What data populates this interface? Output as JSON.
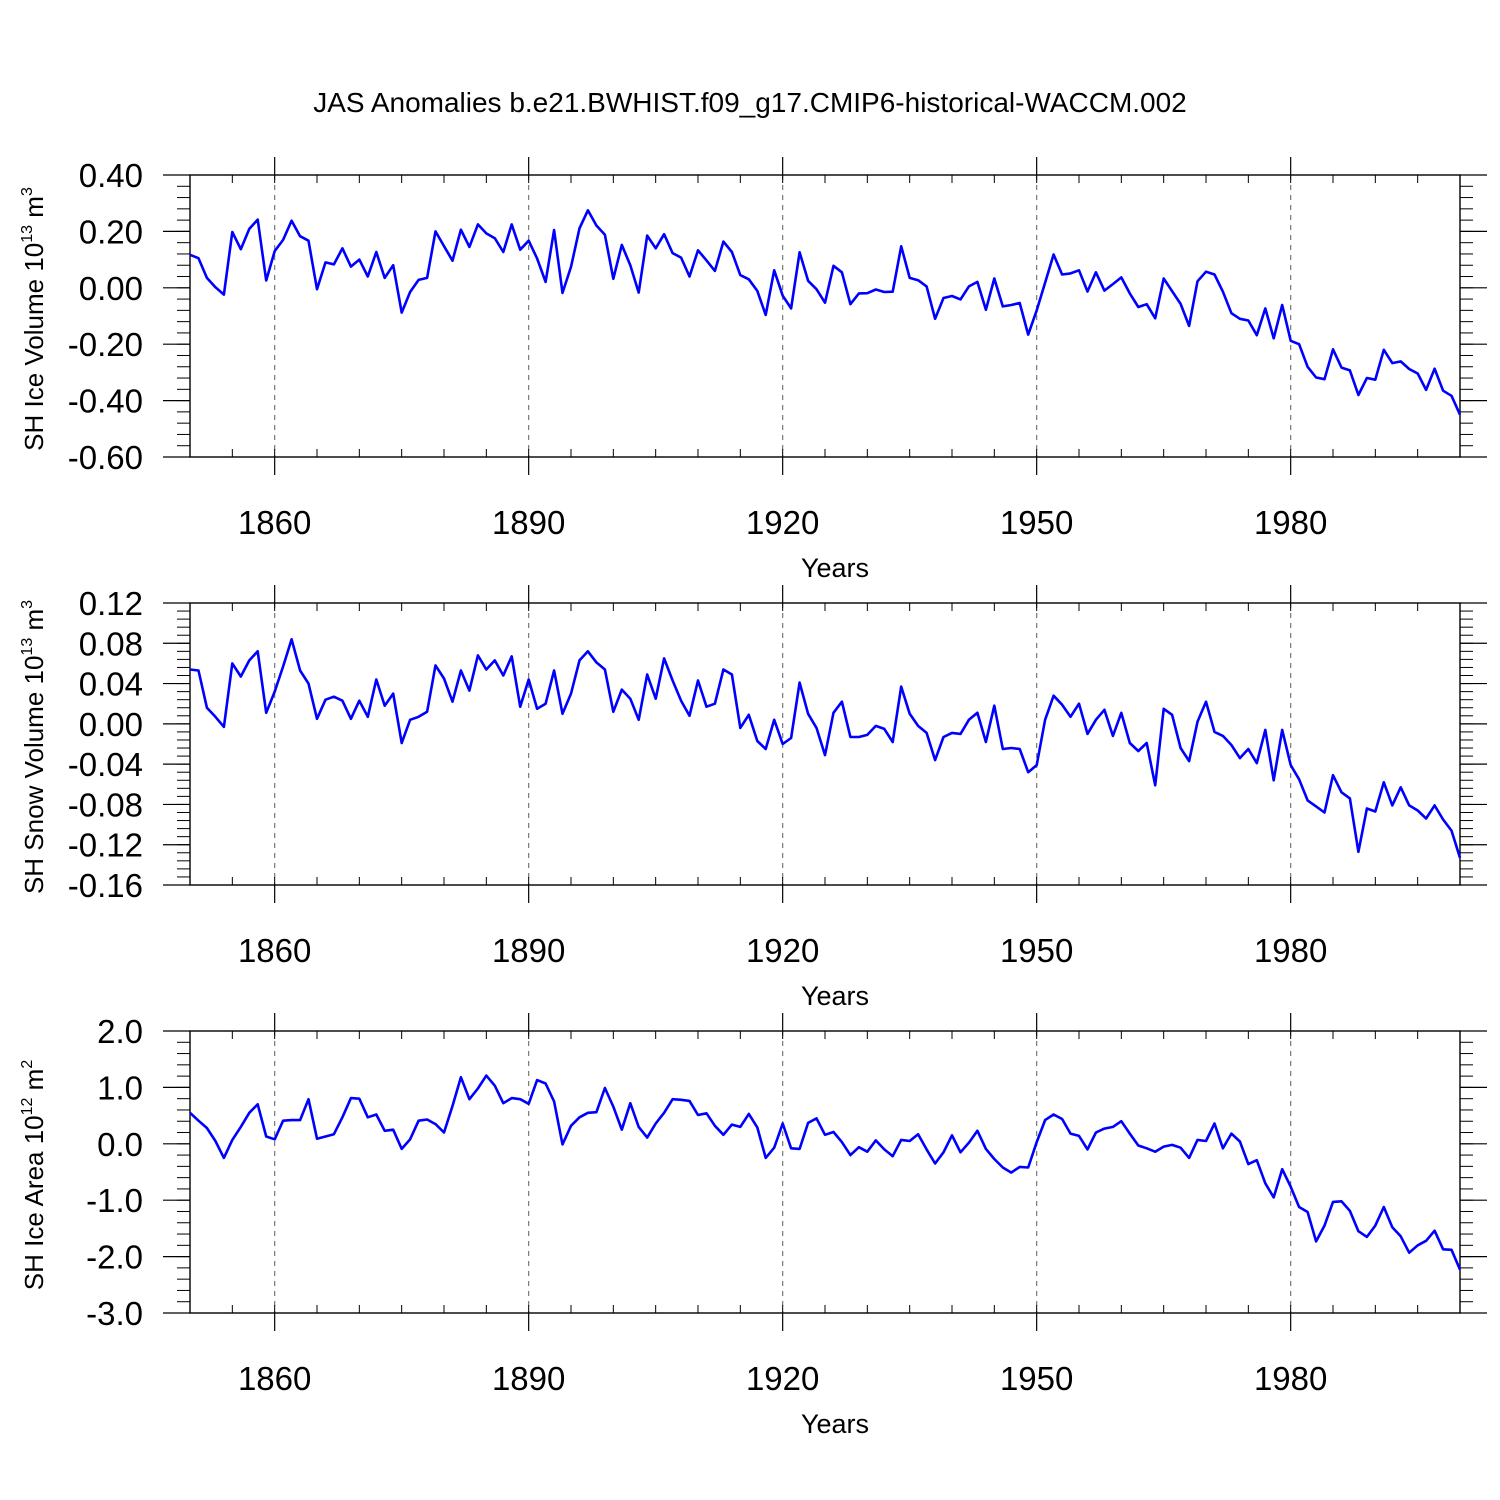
{
  "title": "JAS Anomalies b.e21.BWHIST.f09_g17.CMIP6-historical-WACCM.002",
  "chart_data": [
    {
      "type": "line",
      "ylabel_prefix": "SH Ice Volume 10",
      "ylabel_exp": "13",
      "ylabel_unit": " m",
      "ylabel_unit_exp": "3",
      "xlabel": "Years",
      "xlim": [
        1850,
        2000
      ],
      "ylim": [
        -0.6,
        0.4
      ],
      "yticks": [
        "0.40",
        "0.20",
        "0.00",
        "-0.20",
        "-0.40",
        "-0.60"
      ],
      "ytick_values": [
        0.4,
        0.2,
        0.0,
        -0.2,
        -0.4,
        -0.6
      ],
      "y_minor_step": 0.04,
      "xticks": [
        "1860",
        "1890",
        "1920",
        "1950",
        "1980"
      ],
      "xtick_values": [
        1860,
        1890,
        1920,
        1950,
        1980
      ],
      "x_minor_step": 5,
      "grid": "dashed vertical at major x ticks",
      "line_color": "#0000ff",
      "x_start": 1850,
      "values": [
        0.117,
        0.105,
        0.035,
        0.002,
        -0.024,
        0.198,
        0.137,
        0.209,
        0.242,
        0.026,
        0.13,
        0.17,
        0.238,
        0.183,
        0.167,
        -0.005,
        0.09,
        0.083,
        0.14,
        0.075,
        0.1,
        0.04,
        0.127,
        0.035,
        0.08,
        -0.088,
        -0.015,
        0.028,
        0.035,
        0.2,
        0.148,
        0.096,
        0.206,
        0.145,
        0.225,
        0.193,
        0.176,
        0.127,
        0.225,
        0.135,
        0.167,
        0.104,
        0.021,
        0.205,
        -0.018,
        0.074,
        0.211,
        0.275,
        0.221,
        0.188,
        0.032,
        0.152,
        0.08,
        -0.017,
        0.185,
        0.14,
        0.19,
        0.123,
        0.107,
        0.04,
        0.133,
        0.097,
        0.06,
        0.164,
        0.127,
        0.045,
        0.03,
        -0.011,
        -0.096,
        0.062,
        -0.028,
        -0.073,
        0.126,
        0.025,
        -0.005,
        -0.053,
        0.078,
        0.055,
        -0.058,
        -0.02,
        -0.019,
        -0.006,
        -0.015,
        -0.014,
        0.147,
        0.035,
        0.027,
        0.005,
        -0.11,
        -0.036,
        -0.029,
        -0.041,
        0.005,
        0.021,
        -0.078,
        0.033,
        -0.066,
        -0.061,
        -0.054,
        -0.166,
        -0.08,
        0.018,
        0.118,
        0.047,
        0.051,
        0.062,
        -0.013,
        0.055,
        -0.01,
        0.013,
        0.037,
        -0.02,
        -0.068,
        -0.058,
        -0.108,
        0.033,
        -0.012,
        -0.057,
        -0.135,
        0.023,
        0.057,
        0.047,
        -0.014,
        -0.09,
        -0.11,
        -0.116,
        -0.168,
        -0.073,
        -0.179,
        -0.061,
        -0.188,
        -0.2,
        -0.28,
        -0.318,
        -0.324,
        -0.218,
        -0.283,
        -0.293,
        -0.38,
        -0.32,
        -0.326,
        -0.22,
        -0.267,
        -0.261,
        -0.288,
        -0.304,
        -0.362,
        -0.287,
        -0.365,
        -0.383,
        -0.45
      ]
    },
    {
      "type": "line",
      "ylabel_prefix": "SH Snow Volume 10",
      "ylabel_exp": "13",
      "ylabel_unit": " m",
      "ylabel_unit_exp": "3",
      "xlabel": "Years",
      "xlim": [
        1850,
        2000
      ],
      "ylim": [
        -0.16,
        0.12
      ],
      "yticks": [
        "0.12",
        "0.08",
        "0.04",
        "0.00",
        "-0.04",
        "-0.08",
        "-0.12",
        "-0.16"
      ],
      "ytick_values": [
        0.12,
        0.08,
        0.04,
        0.0,
        -0.04,
        -0.08,
        -0.12,
        -0.16
      ],
      "y_minor_step": 0.008,
      "xticks": [
        "1860",
        "1890",
        "1920",
        "1950",
        "1980"
      ],
      "xtick_values": [
        1860,
        1890,
        1920,
        1950,
        1980
      ],
      "x_minor_step": 5,
      "grid": "dashed vertical at major x ticks",
      "line_color": "#0000ff",
      "x_start": 1850,
      "values": [
        0.054,
        0.053,
        0.016,
        0.007,
        -0.003,
        0.06,
        0.047,
        0.063,
        0.072,
        0.011,
        0.032,
        0.057,
        0.084,
        0.053,
        0.04,
        0.005,
        0.024,
        0.027,
        0.023,
        0.005,
        0.023,
        0.007,
        0.044,
        0.018,
        0.03,
        -0.019,
        0.004,
        0.007,
        0.012,
        0.058,
        0.045,
        0.022,
        0.053,
        0.033,
        0.068,
        0.054,
        0.063,
        0.048,
        0.067,
        0.017,
        0.044,
        0.015,
        0.02,
        0.053,
        0.01,
        0.03,
        0.063,
        0.072,
        0.061,
        0.054,
        0.012,
        0.034,
        0.025,
        0.004,
        0.049,
        0.025,
        0.065,
        0.043,
        0.023,
        0.008,
        0.043,
        0.017,
        0.02,
        0.054,
        0.049,
        -0.004,
        0.009,
        -0.017,
        -0.025,
        0.004,
        -0.02,
        -0.014,
        0.041,
        0.01,
        -0.004,
        -0.031,
        0.011,
        0.022,
        -0.013,
        -0.013,
        -0.011,
        -0.002,
        -0.005,
        -0.018,
        0.037,
        0.01,
        -0.002,
        -0.009,
        -0.036,
        -0.013,
        -0.009,
        -0.01,
        0.004,
        0.011,
        -0.018,
        0.018,
        -0.025,
        -0.024,
        -0.025,
        -0.048,
        -0.041,
        0.004,
        0.028,
        0.019,
        0.007,
        0.02,
        -0.01,
        0.004,
        0.014,
        -0.012,
        0.011,
        -0.019,
        -0.027,
        -0.019,
        -0.061,
        0.015,
        0.009,
        -0.024,
        -0.037,
        0.002,
        0.022,
        -0.008,
        -0.012,
        -0.021,
        -0.034,
        -0.025,
        -0.039,
        -0.006,
        -0.056,
        -0.006,
        -0.041,
        -0.055,
        -0.076,
        -0.082,
        -0.088,
        -0.051,
        -0.068,
        -0.074,
        -0.127,
        -0.084,
        -0.087,
        -0.058,
        -0.081,
        -0.063,
        -0.081,
        -0.086,
        -0.094,
        -0.081,
        -0.095,
        -0.106,
        -0.133
      ]
    },
    {
      "type": "line",
      "ylabel_prefix": "SH Ice Area 10",
      "ylabel_exp": "12",
      "ylabel_unit": " m",
      "ylabel_unit_exp": "2",
      "xlabel": "Years",
      "xlim": [
        1850,
        2000
      ],
      "ylim": [
        -3.0,
        2.0
      ],
      "yticks": [
        "2.0",
        "1.0",
        "0.0",
        "-1.0",
        "-2.0",
        "-3.0"
      ],
      "ytick_values": [
        2.0,
        1.0,
        0.0,
        -1.0,
        -2.0,
        -3.0
      ],
      "y_minor_step": 0.2,
      "xticks": [
        "1860",
        "1890",
        "1920",
        "1950",
        "1980"
      ],
      "xtick_values": [
        1860,
        1890,
        1920,
        1950,
        1980
      ],
      "x_minor_step": 5,
      "grid": "dashed vertical at major x ticks",
      "line_color": "#0000ff",
      "x_start": 1850,
      "values": [
        0.55,
        0.41,
        0.28,
        0.05,
        -0.25,
        0.07,
        0.3,
        0.55,
        0.7,
        0.13,
        0.08,
        0.41,
        0.42,
        0.42,
        0.79,
        0.09,
        0.13,
        0.17,
        0.47,
        0.81,
        0.8,
        0.47,
        0.52,
        0.23,
        0.25,
        -0.09,
        0.08,
        0.41,
        0.43,
        0.35,
        0.2,
        0.67,
        1.18,
        0.79,
        0.98,
        1.21,
        1.03,
        0.72,
        0.81,
        0.79,
        0.71,
        1.13,
        1.07,
        0.75,
        -0.01,
        0.32,
        0.47,
        0.55,
        0.56,
        0.99,
        0.66,
        0.25,
        0.72,
        0.3,
        0.11,
        0.36,
        0.55,
        0.79,
        0.78,
        0.76,
        0.51,
        0.54,
        0.32,
        0.16,
        0.34,
        0.3,
        0.53,
        0.29,
        -0.25,
        -0.07,
        0.36,
        -0.08,
        -0.09,
        0.37,
        0.45,
        0.16,
        0.21,
        0.03,
        -0.2,
        -0.06,
        -0.14,
        0.06,
        -0.1,
        -0.22,
        0.07,
        0.05,
        0.17,
        -0.1,
        -0.35,
        -0.15,
        0.15,
        -0.15,
        0.02,
        0.23,
        -0.09,
        -0.27,
        -0.42,
        -0.51,
        -0.41,
        -0.42,
        0.03,
        0.42,
        0.52,
        0.44,
        0.18,
        0.14,
        -0.1,
        0.2,
        0.27,
        0.3,
        0.4,
        0.18,
        -0.03,
        -0.08,
        -0.14,
        -0.05,
        -0.02,
        -0.07,
        -0.25,
        0.07,
        0.05,
        0.36,
        -0.08,
        0.18,
        0.04,
        -0.36,
        -0.29,
        -0.7,
        -0.95,
        -0.45,
        -0.76,
        -1.12,
        -1.21,
        -1.73,
        -1.45,
        -1.03,
        -1.02,
        -1.19,
        -1.55,
        -1.65,
        -1.45,
        -1.12,
        -1.48,
        -1.64,
        -1.93,
        -1.8,
        -1.72,
        -1.54,
        -1.87,
        -1.88,
        -2.23
      ]
    }
  ]
}
